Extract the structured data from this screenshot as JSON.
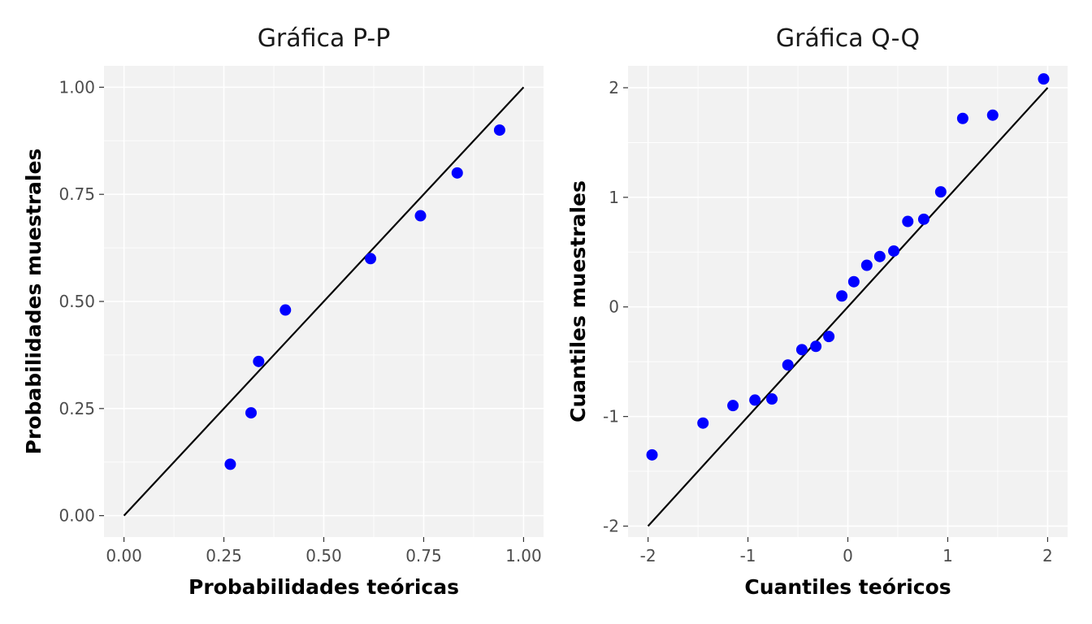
{
  "chart_data": [
    {
      "type": "scatter",
      "title": "Gráfica P-P",
      "xlabel": "Probabilidades teóricas",
      "ylabel": "Probabilidades muestrales",
      "xlim": [
        -0.05,
        1.05
      ],
      "ylim": [
        -0.05,
        1.05
      ],
      "xticks": [
        0.0,
        0.25,
        0.5,
        0.75,
        1.0
      ],
      "yticks": [
        0.0,
        0.25,
        0.5,
        0.75,
        1.0
      ],
      "xtick_labels": [
        "0.00",
        "0.25",
        "0.50",
        "0.75",
        "1.00"
      ],
      "ytick_labels": [
        "0.00",
        "0.25",
        "0.50",
        "0.75",
        "1.00"
      ],
      "grid": true,
      "point_color": "#0000ff",
      "line_color": "#000000",
      "reference_line": [
        [
          0,
          0
        ],
        [
          1,
          1
        ]
      ],
      "points": [
        {
          "x": 0.266,
          "y": 0.12
        },
        {
          "x": 0.318,
          "y": 0.24
        },
        {
          "x": 0.337,
          "y": 0.36
        },
        {
          "x": 0.404,
          "y": 0.48
        },
        {
          "x": 0.617,
          "y": 0.6
        },
        {
          "x": 0.742,
          "y": 0.7
        },
        {
          "x": 0.834,
          "y": 0.8
        },
        {
          "x": 0.94,
          "y": 0.9
        }
      ]
    },
    {
      "type": "scatter",
      "title": "Gráfica Q-Q",
      "xlabel": "Cuantiles teóricos",
      "ylabel": "Cuantiles muestrales",
      "xlim": [
        -2.2,
        2.2
      ],
      "ylim": [
        -2.1,
        2.2
      ],
      "xticks": [
        -2,
        -1,
        0,
        1,
        2
      ],
      "yticks": [
        -2,
        -1,
        0,
        1,
        2
      ],
      "xtick_labels": [
        "-2",
        "-1",
        "0",
        "1",
        "2"
      ],
      "ytick_labels": [
        "-2",
        "-1",
        "0",
        "1",
        "2"
      ],
      "grid": true,
      "point_color": "#0000ff",
      "line_color": "#000000",
      "reference_line": [
        [
          -2,
          -2
        ],
        [
          2,
          2
        ]
      ],
      "points": [
        {
          "x": -1.96,
          "y": -1.35
        },
        {
          "x": -1.45,
          "y": -1.06
        },
        {
          "x": -1.15,
          "y": -0.9
        },
        {
          "x": -0.93,
          "y": -0.85
        },
        {
          "x": -0.76,
          "y": -0.84
        },
        {
          "x": -0.6,
          "y": -0.53
        },
        {
          "x": -0.46,
          "y": -0.39
        },
        {
          "x": -0.32,
          "y": -0.36
        },
        {
          "x": -0.19,
          "y": -0.27
        },
        {
          "x": -0.06,
          "y": 0.1
        },
        {
          "x": 0.06,
          "y": 0.23
        },
        {
          "x": 0.19,
          "y": 0.38
        },
        {
          "x": 0.32,
          "y": 0.46
        },
        {
          "x": 0.46,
          "y": 0.51
        },
        {
          "x": 0.6,
          "y": 0.78
        },
        {
          "x": 0.76,
          "y": 0.8
        },
        {
          "x": 0.93,
          "y": 1.05
        },
        {
          "x": 1.15,
          "y": 1.72
        },
        {
          "x": 1.45,
          "y": 1.75
        },
        {
          "x": 1.96,
          "y": 2.08
        }
      ]
    }
  ]
}
